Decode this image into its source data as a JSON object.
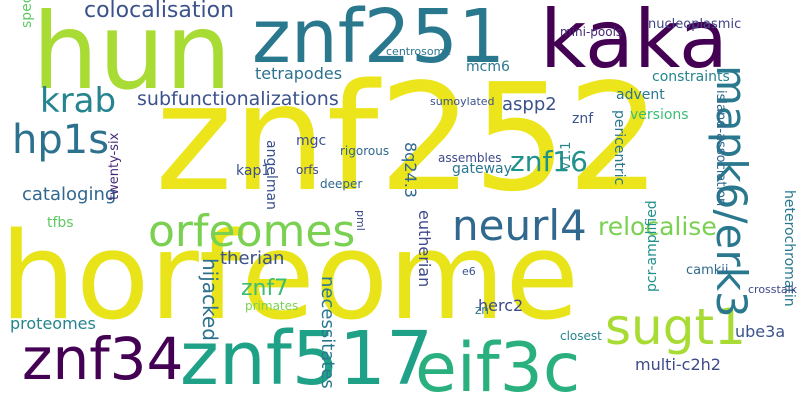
{
  "words": [
    {
      "text": "znf252",
      "color": "#ece51b"
    },
    {
      "text": "horfeome",
      "color": "#e8e419"
    },
    {
      "text": "hun",
      "color": "#a8db34"
    },
    {
      "text": "kaka",
      "color": "#440154"
    },
    {
      "text": "znf251",
      "color": "#2a788e"
    },
    {
      "text": "znf517",
      "color": "#1fa187"
    },
    {
      "text": "eif3c",
      "color": "#2ab07f"
    },
    {
      "text": "znf34",
      "color": "#440154"
    },
    {
      "text": "orfeomes",
      "color": "#7ad151"
    },
    {
      "text": "sugt1",
      "color": "#a8db34"
    },
    {
      "text": "mapk6/erk3",
      "color": "#2a788e"
    },
    {
      "text": "neurl4",
      "color": "#31688e"
    },
    {
      "text": "hp1s",
      "color": "#2c728e"
    },
    {
      "text": "krab",
      "color": "#25848e"
    },
    {
      "text": "colocalisation",
      "color": "#3b528b"
    },
    {
      "text": "subfunctionalizations",
      "color": "#3b528b"
    },
    {
      "text": "tetrapodes",
      "color": "#2c728e"
    },
    {
      "text": "znf16",
      "color": "#21918c"
    },
    {
      "text": "relocalise",
      "color": "#7ad151"
    },
    {
      "text": "therian",
      "color": "#3b528b"
    },
    {
      "text": "znf7",
      "color": "#3dbc74"
    },
    {
      "text": "hijacked",
      "color": "#2c728e"
    },
    {
      "text": "cataloging",
      "color": "#31688e"
    },
    {
      "text": "proteomes",
      "color": "#25848e"
    },
    {
      "text": "multi-c2h2",
      "color": "#3e4989"
    },
    {
      "text": "ube3a",
      "color": "#3b528b"
    },
    {
      "text": "necessitates",
      "color": "#2a788e"
    },
    {
      "text": "eutherian",
      "color": "#3e4989"
    },
    {
      "text": "8q24.3",
      "color": "#31688e"
    },
    {
      "text": "herc2",
      "color": "#3e4989"
    },
    {
      "text": "pcr-amplified",
      "color": "#21918c"
    },
    {
      "text": "heterochromatin",
      "color": "#2a788e"
    },
    {
      "text": "island-association",
      "color": "#31688e"
    },
    {
      "text": "nucleoplasmic",
      "color": "#414487"
    },
    {
      "text": "gateway",
      "color": "#2a788e"
    },
    {
      "text": "pericentric",
      "color": "#2a788e"
    },
    {
      "text": "angelman",
      "color": "#3b528b"
    },
    {
      "text": "aspp2",
      "color": "#3b528b"
    },
    {
      "text": "speciation",
      "color": "#5ec962"
    },
    {
      "text": "mgc",
      "color": "#3b528b"
    },
    {
      "text": "advent",
      "color": "#2a788e"
    },
    {
      "text": "constraints",
      "color": "#25848e"
    },
    {
      "text": "mcm6",
      "color": "#2a788e"
    },
    {
      "text": "kap1",
      "color": "#3b528b"
    },
    {
      "text": "mini-pools",
      "color": "#482878"
    },
    {
      "text": "twenty-six",
      "color": "#482878"
    },
    {
      "text": "tfbs",
      "color": "#5ec962"
    },
    {
      "text": "zn",
      "color": "#2a788e"
    },
    {
      "text": "versions",
      "color": "#3dbc74"
    },
    {
      "text": "v1.1",
      "color": "#25848e"
    },
    {
      "text": "znf",
      "color": "#3b528b"
    },
    {
      "text": "camkii",
      "color": "#31688e"
    },
    {
      "text": "assembles",
      "color": "#3e4989"
    },
    {
      "text": "rigorous",
      "color": "#31688e"
    },
    {
      "text": "deeper",
      "color": "#31688e"
    },
    {
      "text": "orfs",
      "color": "#3e4989"
    },
    {
      "text": "primates",
      "color": "#7ad151"
    },
    {
      "text": "closest",
      "color": "#25848e"
    },
    {
      "text": "crosstalk",
      "color": "#3e4989"
    },
    {
      "text": "sumoylated",
      "color": "#3b528b"
    },
    {
      "text": "centrosome",
      "color": "#2c728e"
    },
    {
      "text": "e6",
      "color": "#3b528b"
    },
    {
      "text": "pml",
      "color": "#3e4989"
    }
  ]
}
